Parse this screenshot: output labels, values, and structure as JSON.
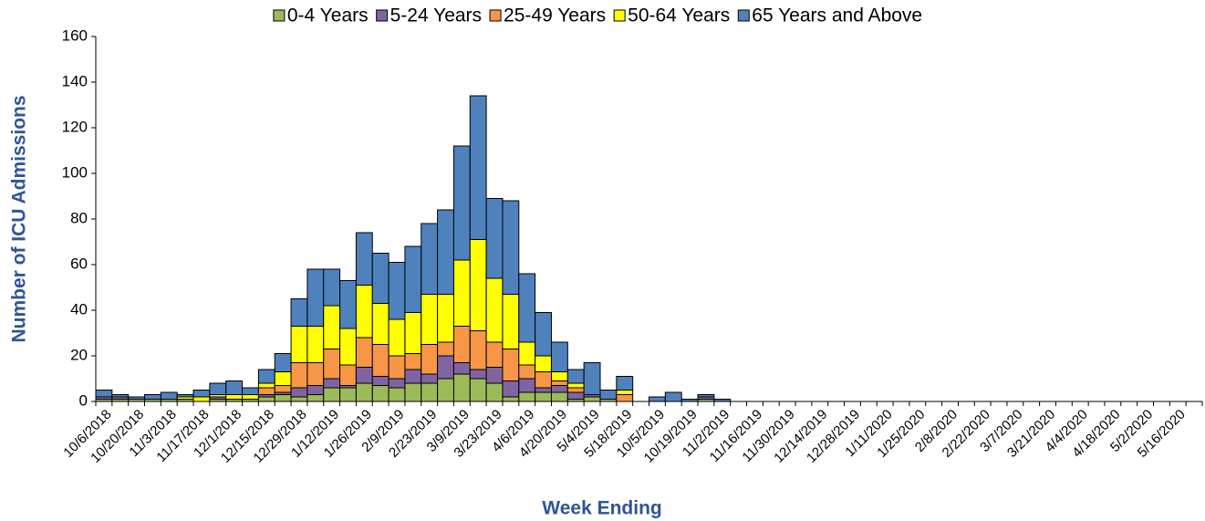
{
  "chart_data": {
    "type": "stacked-bar",
    "x_label": "Week Ending",
    "y_label": "Number of ICU Admissions",
    "categories": [
      "10/6/2018",
      null,
      "10/20/2018",
      null,
      "11/3/2018",
      null,
      "11/17/2018",
      null,
      "12/1/2018",
      null,
      "12/15/2018",
      null,
      "12/29/2018",
      null,
      "1/12/2019",
      null,
      "1/26/2019",
      null,
      "2/9/2019",
      null,
      "2/23/2019",
      null,
      "3/9/2019",
      null,
      "3/23/2019",
      null,
      "4/6/2019",
      null,
      "4/20/2019",
      null,
      "5/4/2019",
      null,
      "5/18/2019",
      null,
      "10/5/2019",
      null,
      "10/19/2019",
      null,
      "11/2/2019",
      null,
      "11/16/2019",
      null,
      "11/30/2019",
      null,
      "12/14/2019",
      null,
      "12/28/2019",
      null,
      "1/11/2020",
      null,
      "1/25/2020",
      null,
      "2/8/2020",
      null,
      "2/22/2020",
      null,
      "3/7/2020",
      null,
      "3/21/2020",
      null,
      "4/4/2020",
      null,
      "4/18/2020",
      null,
      "5/2/2020",
      null,
      "5/16/2020",
      null
    ],
    "series": [
      {
        "name": "0-4 Years",
        "color": "#9bbb59",
        "values": [
          1,
          1,
          1,
          1,
          1,
          1,
          0,
          1,
          1,
          1,
          2,
          3,
          2,
          3,
          6,
          6,
          8,
          7,
          6,
          8,
          8,
          10,
          12,
          10,
          8,
          2,
          4,
          4,
          4,
          1,
          2,
          1,
          0,
          0,
          0,
          0,
          0,
          1,
          0,
          0,
          0,
          0,
          0,
          0,
          0,
          0,
          0,
          0,
          0,
          0,
          0,
          0,
          0,
          0,
          0,
          0,
          0,
          0,
          0,
          0,
          0,
          0,
          0,
          0,
          0,
          0,
          0,
          0
        ]
      },
      {
        "name": "5-24 Years",
        "color": "#8064a2",
        "values": [
          1,
          1,
          0,
          0,
          0,
          0,
          0,
          1,
          0,
          0,
          1,
          1,
          4,
          4,
          4,
          1,
          7,
          4,
          4,
          6,
          4,
          10,
          5,
          4,
          7,
          7,
          6,
          2,
          3,
          3,
          1,
          0,
          0,
          0,
          0,
          0,
          0,
          1,
          0,
          0,
          0,
          0,
          0,
          0,
          0,
          0,
          0,
          0,
          0,
          0,
          0,
          0,
          0,
          0,
          0,
          0,
          0,
          0,
          0,
          0,
          0,
          0,
          0,
          0,
          0,
          0,
          0,
          0
        ]
      },
      {
        "name": "25-49 Years",
        "color": "#f79646",
        "values": [
          0,
          0,
          0,
          0,
          0,
          0,
          0,
          0,
          0,
          0,
          3,
          3,
          11,
          10,
          13,
          9,
          13,
          14,
          10,
          7,
          13,
          6,
          16,
          17,
          11,
          14,
          6,
          7,
          2,
          2,
          0,
          0,
          3,
          0,
          0,
          0,
          0,
          0,
          0,
          0,
          0,
          0,
          0,
          0,
          0,
          0,
          0,
          0,
          0,
          0,
          0,
          0,
          0,
          0,
          0,
          0,
          0,
          0,
          0,
          0,
          0,
          0,
          0,
          0,
          0,
          0,
          0,
          0
        ]
      },
      {
        "name": "50-64 Years",
        "color": "#ffff00",
        "values": [
          0,
          0,
          0,
          0,
          0,
          1,
          2,
          1,
          2,
          2,
          2,
          6,
          16,
          16,
          19,
          16,
          23,
          18,
          16,
          18,
          22,
          21,
          29,
          40,
          28,
          24,
          10,
          7,
          4,
          2,
          0,
          0,
          2,
          0,
          0,
          0,
          0,
          0,
          0,
          0,
          0,
          0,
          0,
          0,
          0,
          0,
          0,
          0,
          0,
          0,
          0,
          0,
          0,
          0,
          0,
          0,
          0,
          0,
          0,
          0,
          0,
          0,
          0,
          0,
          0,
          0,
          0,
          0
        ]
      },
      {
        "name": "65 Years and Above",
        "color": "#4f81bd",
        "values": [
          3,
          1,
          1,
          2,
          3,
          1,
          3,
          5,
          6,
          3,
          6,
          8,
          12,
          25,
          16,
          21,
          23,
          22,
          25,
          29,
          31,
          37,
          50,
          63,
          35,
          41,
          30,
          19,
          13,
          6,
          14,
          4,
          6,
          0,
          2,
          4,
          1,
          1,
          1,
          0,
          0,
          0,
          0,
          0,
          0,
          0,
          0,
          0,
          0,
          0,
          0,
          0,
          0,
          0,
          0,
          0,
          0,
          0,
          0,
          0,
          0,
          0,
          0,
          0,
          0,
          0,
          0,
          0
        ]
      }
    ],
    "ylim": [
      0,
      160
    ],
    "yticks": [
      0,
      20,
      40,
      60,
      80,
      100,
      120,
      140,
      160
    ]
  }
}
